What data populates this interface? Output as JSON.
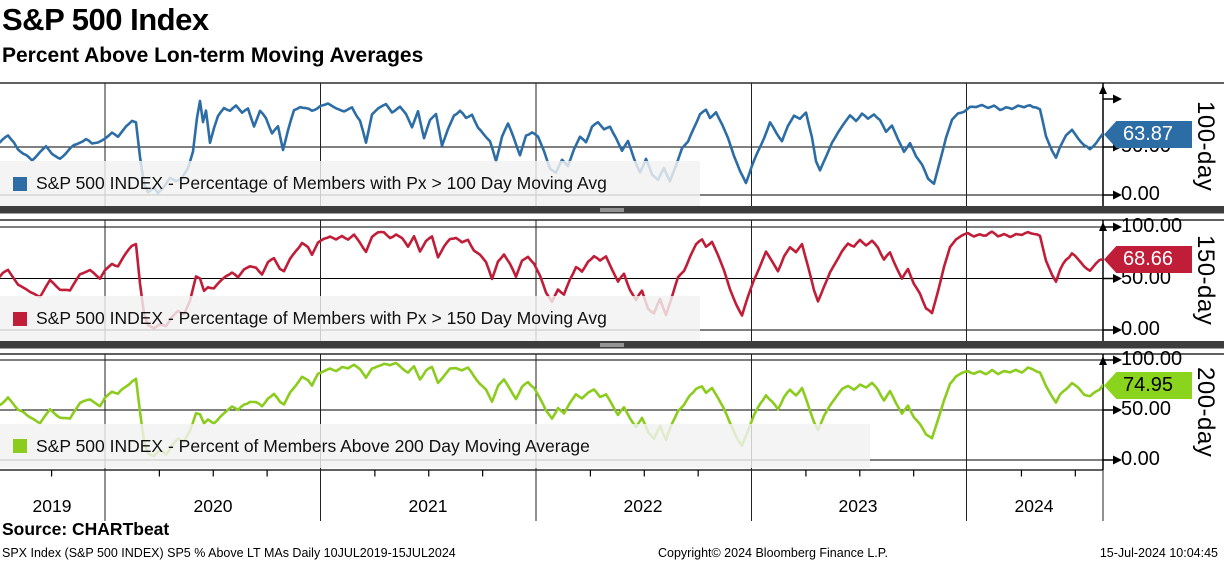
{
  "header": {
    "title": "S&P 500 Index",
    "subtitle": "Percent Above Lon-term Moving Averages"
  },
  "x_axis": {
    "years": [
      "2019",
      "2020",
      "2021",
      "2022",
      "2023",
      "2024"
    ]
  },
  "footer": {
    "source": "Source: CHARTbeat",
    "details": "SPX Index (S&P 500 INDEX) SP5 % Above LT MAs  Daily 10JUL2019-15JUL2024",
    "copyright": "Copyright© 2024 Bloomberg Finance L.P.",
    "timestamp": "15-Jul-2024 10:04:45"
  },
  "chart_data": [
    {
      "type": "line",
      "name": "pct-above-100day",
      "legend": "S&P 500 INDEX - Percentage of Members with Px > 100 Day Moving Avg",
      "axis_label": "100-day",
      "color": "#2d6da6",
      "ylim": [
        0,
        100
      ],
      "yticks": [
        {
          "v": 100,
          "label": ""
        },
        {
          "v": 50,
          "label": "50.00"
        },
        {
          "v": 0,
          "label": "0.00"
        }
      ],
      "last_value": 63.87,
      "badge": {
        "label": "63.87",
        "fill": "#2d6da6",
        "text_color": "#ffffff"
      },
      "points": [
        0,
        55,
        8,
        62,
        14,
        55,
        18,
        48,
        26,
        42,
        32,
        35,
        40,
        44,
        46,
        50,
        52,
        42,
        60,
        38,
        68,
        45,
        74,
        52,
        80,
        56,
        86,
        58,
        92,
        52,
        98,
        55,
        105,
        60,
        112,
        66,
        118,
        60,
        126,
        72,
        132,
        78,
        136,
        76,
        140,
        40,
        144,
        12,
        148,
        3,
        154,
        8,
        158,
        2,
        164,
        8,
        170,
        16,
        176,
        13,
        182,
        18,
        188,
        28,
        193,
        45,
        197,
        80,
        200,
        97,
        203,
        75,
        206,
        88,
        210,
        55,
        214,
        70,
        218,
        82,
        224,
        90,
        230,
        87,
        236,
        92,
        242,
        85,
        248,
        90,
        254,
        72,
        260,
        88,
        266,
        80,
        272,
        65,
        278,
        73,
        283,
        48,
        288,
        68,
        294,
        88,
        300,
        92,
        306,
        89,
        312,
        86,
        320,
        92,
        328,
        95,
        336,
        90,
        344,
        88,
        352,
        92,
        360,
        78,
        366,
        55,
        372,
        85,
        378,
        90,
        386,
        95,
        392,
        87,
        400,
        92,
        406,
        84,
        412,
        70,
        418,
        88,
        424,
        60,
        430,
        78,
        436,
        85,
        442,
        52,
        448,
        70,
        454,
        85,
        460,
        88,
        466,
        80,
        472,
        85,
        478,
        70,
        484,
        62,
        490,
        55,
        496,
        35,
        502,
        60,
        508,
        72,
        514,
        58,
        520,
        42,
        526,
        62,
        532,
        65,
        538,
        60,
        544,
        45,
        550,
        28,
        556,
        22,
        562,
        35,
        568,
        30,
        574,
        48,
        580,
        60,
        586,
        55,
        592,
        70,
        598,
        75,
        604,
        68,
        610,
        72,
        616,
        60,
        622,
        45,
        628,
        55,
        634,
        38,
        640,
        25,
        646,
        38,
        652,
        20,
        658,
        15,
        664,
        28,
        670,
        14,
        676,
        30,
        682,
        48,
        688,
        55,
        694,
        70,
        700,
        85,
        706,
        90,
        710,
        82,
        716,
        88,
        722,
        75,
        728,
        60,
        734,
        40,
        740,
        25,
        746,
        12,
        752,
        30,
        758,
        45,
        764,
        60,
        770,
        75,
        776,
        65,
        782,
        55,
        788,
        70,
        794,
        82,
        800,
        78,
        806,
        85,
        812,
        60,
        816,
        35,
        820,
        25,
        826,
        40,
        832,
        55,
        838,
        65,
        844,
        75,
        850,
        82,
        856,
        78,
        862,
        85,
        868,
        80,
        874,
        85,
        880,
        78,
        886,
        65,
        892,
        72,
        898,
        58,
        904,
        45,
        910,
        55,
        916,
        40,
        922,
        30,
        928,
        15,
        934,
        12,
        940,
        35,
        946,
        60,
        952,
        78,
        958,
        85,
        964,
        88,
        970,
        92,
        976,
        90,
        982,
        93,
        988,
        90,
        994,
        92,
        1000,
        88,
        1006,
        91,
        1012,
        89,
        1018,
        92,
        1024,
        90,
        1030,
        93,
        1036,
        91,
        1040,
        88,
        1046,
        60,
        1052,
        45,
        1056,
        38,
        1060,
        50,
        1066,
        62,
        1072,
        68,
        1078,
        60,
        1084,
        52,
        1090,
        48,
        1096,
        55,
        1103,
        63.87
      ]
    },
    {
      "type": "line",
      "name": "pct-above-150day",
      "legend": "S&P 500 INDEX - Percentage of Members with Px > 150 Day Moving Avg",
      "axis_label": "150-day",
      "color": "#c01d38",
      "ylim": [
        0,
        100
      ],
      "yticks": [
        {
          "v": 100,
          "label": "100.00"
        },
        {
          "v": 50,
          "label": "50.00"
        },
        {
          "v": 0,
          "label": "0.00"
        }
      ],
      "last_value": 68.66,
      "badge": {
        "label": "68.66",
        "fill": "#c01d38",
        "text_color": "#ffffff"
      },
      "points": [
        0,
        52,
        8,
        58,
        18,
        45,
        30,
        36,
        40,
        33,
        50,
        48,
        60,
        40,
        70,
        37,
        80,
        52,
        90,
        56,
        100,
        50,
        105,
        58,
        112,
        65,
        118,
        62,
        126,
        72,
        132,
        80,
        136,
        83,
        140,
        45,
        144,
        15,
        148,
        4,
        154,
        2,
        160,
        6,
        166,
        3,
        172,
        12,
        178,
        18,
        184,
        16,
        190,
        28,
        196,
        52,
        200,
        50,
        204,
        38,
        208,
        42,
        214,
        40,
        220,
        46,
        226,
        52,
        232,
        55,
        238,
        50,
        244,
        58,
        250,
        62,
        256,
        60,
        262,
        55,
        268,
        65,
        274,
        68,
        280,
        60,
        284,
        58,
        290,
        70,
        296,
        78,
        302,
        85,
        308,
        80,
        312,
        72,
        318,
        84,
        324,
        88,
        330,
        90,
        336,
        88,
        342,
        91,
        348,
        89,
        354,
        92,
        360,
        85,
        366,
        75,
        372,
        88,
        378,
        92,
        384,
        94,
        390,
        90,
        396,
        93,
        402,
        88,
        408,
        80,
        414,
        90,
        420,
        75,
        426,
        85,
        432,
        90,
        438,
        70,
        444,
        80,
        450,
        88,
        456,
        90,
        462,
        85,
        468,
        88,
        474,
        78,
        480,
        72,
        486,
        65,
        492,
        50,
        498,
        68,
        504,
        75,
        510,
        65,
        516,
        52,
        522,
        68,
        528,
        72,
        534,
        66,
        540,
        52,
        546,
        35,
        552,
        28,
        558,
        40,
        564,
        35,
        570,
        50,
        576,
        62,
        582,
        58,
        588,
        68,
        594,
        72,
        600,
        66,
        606,
        70,
        612,
        58,
        618,
        46,
        624,
        55,
        630,
        40,
        636,
        28,
        642,
        38,
        648,
        22,
        654,
        17,
        660,
        30,
        666,
        15,
        672,
        32,
        678,
        50,
        684,
        58,
        690,
        72,
        696,
        82,
        702,
        86,
        706,
        80,
        712,
        85,
        718,
        72,
        724,
        58,
        730,
        40,
        736,
        26,
        742,
        15,
        748,
        32,
        754,
        48,
        760,
        62,
        766,
        75,
        772,
        66,
        778,
        58,
        784,
        72,
        790,
        80,
        796,
        76,
        802,
        83,
        808,
        62,
        814,
        38,
        818,
        28,
        824,
        42,
        830,
        56,
        836,
        66,
        842,
        76,
        848,
        83,
        854,
        80,
        860,
        86,
        866,
        82,
        872,
        86,
        878,
        80,
        884,
        68,
        890,
        75,
        896,
        62,
        902,
        50,
        908,
        58,
        914,
        44,
        920,
        34,
        926,
        20,
        932,
        16,
        938,
        38,
        944,
        62,
        950,
        80,
        956,
        87,
        962,
        90,
        968,
        93,
        974,
        91,
        980,
        94,
        986,
        92,
        992,
        94,
        998,
        90,
        1004,
        93,
        1010,
        91,
        1016,
        94,
        1022,
        92,
        1028,
        95,
        1034,
        93,
        1040,
        90,
        1046,
        68,
        1052,
        55,
        1056,
        48,
        1060,
        58,
        1066,
        68,
        1072,
        74,
        1078,
        68,
        1084,
        62,
        1090,
        58,
        1096,
        63,
        1103,
        68.66
      ]
    },
    {
      "type": "line",
      "name": "pct-above-200day",
      "legend": "S&P 500 INDEX - Percent of Members Above 200 Day Moving Average",
      "axis_label": "200-day",
      "color": "#8bcc1f",
      "ylim": [
        0,
        100
      ],
      "yticks": [
        {
          "v": 100,
          "label": "100.00"
        },
        {
          "v": 50,
          "label": "50.00"
        },
        {
          "v": 0,
          "label": "0.00"
        }
      ],
      "last_value": 74.95,
      "badge": {
        "label": "74.95",
        "fill": "#8bd41e",
        "text_color": "#000000"
      },
      "points": [
        0,
        55,
        8,
        62,
        18,
        50,
        30,
        42,
        40,
        36,
        50,
        50,
        60,
        44,
        70,
        40,
        80,
        56,
        90,
        60,
        100,
        55,
        105,
        62,
        112,
        68,
        118,
        65,
        126,
        74,
        132,
        80,
        136,
        82,
        140,
        48,
        144,
        18,
        148,
        6,
        154,
        3,
        160,
        8,
        166,
        4,
        172,
        14,
        178,
        20,
        184,
        18,
        190,
        30,
        196,
        48,
        200,
        46,
        204,
        36,
        208,
        40,
        214,
        38,
        220,
        44,
        226,
        48,
        232,
        52,
        238,
        48,
        244,
        55,
        250,
        58,
        256,
        56,
        262,
        52,
        268,
        62,
        274,
        66,
        280,
        58,
        284,
        56,
        290,
        68,
        296,
        76,
        302,
        84,
        308,
        80,
        312,
        74,
        318,
        86,
        324,
        90,
        330,
        93,
        336,
        91,
        342,
        94,
        348,
        92,
        354,
        95,
        360,
        90,
        366,
        82,
        372,
        92,
        378,
        95,
        384,
        96,
        390,
        93,
        396,
        95,
        402,
        91,
        408,
        86,
        414,
        93,
        420,
        82,
        426,
        90,
        432,
        93,
        438,
        78,
        444,
        86,
        450,
        92,
        456,
        93,
        462,
        89,
        468,
        91,
        474,
        84,
        480,
        78,
        486,
        72,
        492,
        60,
        498,
        74,
        504,
        80,
        510,
        72,
        516,
        62,
        522,
        74,
        528,
        78,
        534,
        72,
        540,
        60,
        546,
        48,
        552,
        42,
        558,
        52,
        564,
        46,
        570,
        58,
        576,
        66,
        582,
        62,
        588,
        68,
        594,
        70,
        600,
        64,
        606,
        66,
        612,
        55,
        618,
        45,
        624,
        52,
        630,
        42,
        636,
        34,
        642,
        42,
        648,
        28,
        654,
        22,
        660,
        34,
        666,
        20,
        672,
        36,
        678,
        50,
        684,
        56,
        690,
        66,
        696,
        72,
        702,
        74,
        706,
        68,
        712,
        72,
        718,
        62,
        724,
        50,
        730,
        36,
        736,
        24,
        742,
        16,
        748,
        30,
        754,
        44,
        760,
        56,
        766,
        66,
        772,
        58,
        778,
        50,
        784,
        62,
        790,
        70,
        796,
        66,
        802,
        72,
        808,
        55,
        814,
        38,
        818,
        30,
        824,
        44,
        830,
        54,
        836,
        62,
        842,
        70,
        848,
        74,
        854,
        70,
        860,
        76,
        866,
        72,
        872,
        76,
        878,
        70,
        884,
        60,
        890,
        68,
        896,
        56,
        902,
        46,
        908,
        54,
        914,
        42,
        920,
        34,
        926,
        24,
        932,
        20,
        938,
        40,
        944,
        60,
        950,
        76,
        956,
        83,
        962,
        86,
        968,
        88,
        974,
        86,
        980,
        89,
        986,
        87,
        992,
        90,
        998,
        86,
        1004,
        89,
        1010,
        87,
        1016,
        90,
        1022,
        88,
        1028,
        92,
        1034,
        90,
        1040,
        87,
        1046,
        72,
        1052,
        62,
        1056,
        56,
        1060,
        64,
        1066,
        70,
        1072,
        76,
        1078,
        72,
        1084,
        66,
        1090,
        64,
        1096,
        70,
        1103,
        74.95
      ]
    }
  ]
}
